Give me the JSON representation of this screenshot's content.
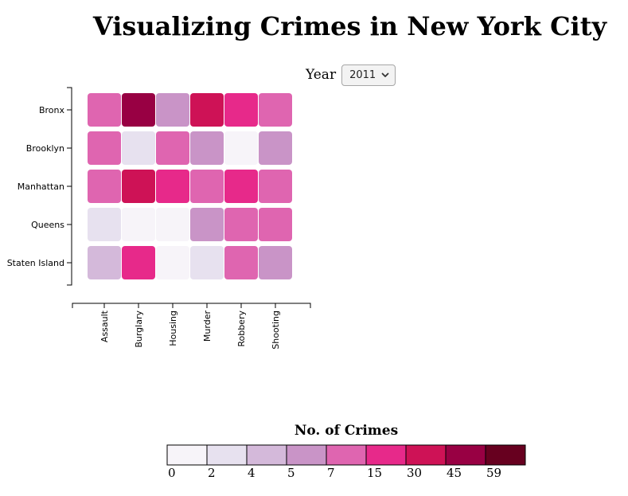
{
  "title": "Visualizing Crimes in New York City",
  "year_control": {
    "label": "Year",
    "selected": "2011"
  },
  "chart_data": {
    "type": "heatmap",
    "rows": [
      "Bronx",
      "Brooklyn",
      "Manhattan",
      "Queens",
      "Staten Island"
    ],
    "columns": [
      "Assault",
      "Burglary",
      "Housing",
      "Murder",
      "Robbery",
      "Shooting"
    ],
    "values": [
      [
        10,
        52,
        6,
        40,
        25,
        10
      ],
      [
        10,
        3,
        10,
        6,
        1,
        6
      ],
      [
        10,
        40,
        25,
        10,
        25,
        10
      ],
      [
        3,
        1,
        0,
        6,
        10,
        10
      ],
      [
        4,
        25,
        1,
        3,
        10,
        6
      ]
    ],
    "legend": {
      "title": "No. of Crimes",
      "thresholds": [
        "0",
        "2",
        "4",
        "5",
        "7",
        "15",
        "30",
        "45",
        "59"
      ],
      "colors": [
        "#f7f4f9",
        "#e7e1ef",
        "#d4b9da",
        "#c994c7",
        "#df65b0",
        "#e7298a",
        "#ce1256",
        "#980043",
        "#67001f"
      ]
    }
  }
}
